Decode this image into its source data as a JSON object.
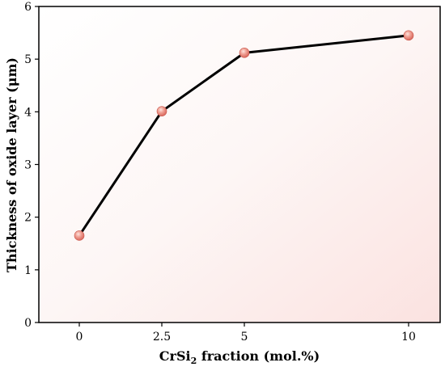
{
  "chart_data": {
    "type": "line",
    "title": "",
    "xlabel_main": "CrSi",
    "xlabel_sub": "2",
    "xlabel_tail": " fraction (mol.%)",
    "ylabel": "Thickness of oxide layer (μm)",
    "x_ticks": [
      "0",
      "2.5",
      "5",
      "10"
    ],
    "y_ticks": [
      "0",
      "1",
      "2",
      "3",
      "4",
      "5",
      "6"
    ],
    "ylim": [
      0,
      6
    ],
    "grid": false,
    "legend": "none",
    "series": [
      {
        "categories": [
          "0",
          "2.5",
          "5",
          "10"
        ],
        "values": [
          1.65,
          4.01,
          5.12,
          5.45
        ]
      }
    ],
    "colors": {
      "line": "#000000",
      "marker": "#e9877d",
      "marker_highlight": "#fde3de",
      "background_gradient_end": "#fbe2e0"
    }
  }
}
